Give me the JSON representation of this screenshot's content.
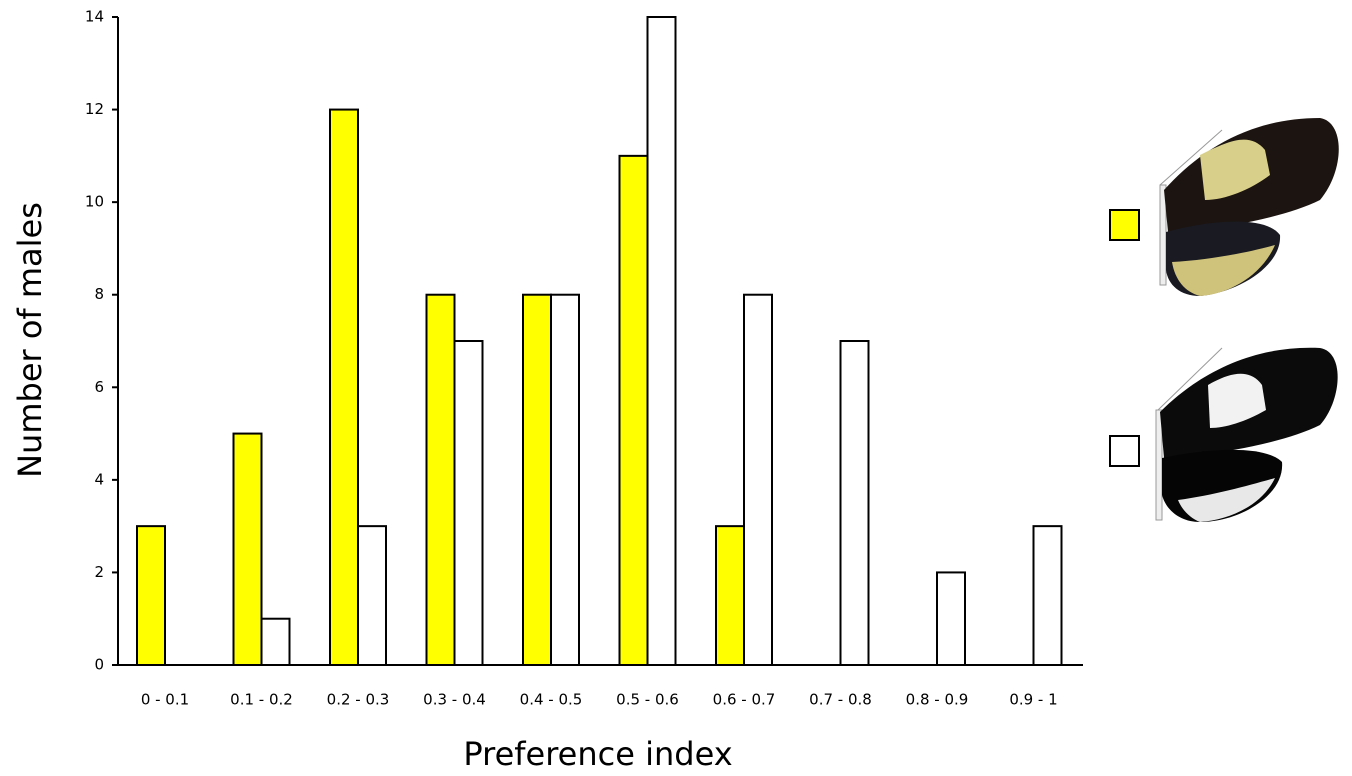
{
  "chart_data": {
    "type": "bar",
    "x_label": "Preference index",
    "y_label": "Number of males",
    "categories": [
      "0 - 0.1",
      "0.1 - 0.2",
      "0.2 - 0.3",
      "0.3 - 0.4",
      "0.4 - 0.5",
      "0.5 - 0.6",
      "0.6 - 0.7",
      "0.7 - 0.8",
      "0.8 - 0.9",
      "0.9 - 1"
    ],
    "series": [
      {
        "color": "#ffff00",
        "values": [
          3,
          5,
          12,
          8,
          8,
          11,
          3,
          0,
          0,
          0
        ]
      },
      {
        "color": "#ffffff",
        "values": [
          0,
          1,
          3,
          7,
          8,
          14,
          8,
          7,
          2,
          3
        ]
      }
    ],
    "ylim": [
      0,
      14
    ],
    "yticks": [
      0,
      2,
      4,
      6,
      8,
      10,
      12,
      14
    ],
    "grid": false
  }
}
